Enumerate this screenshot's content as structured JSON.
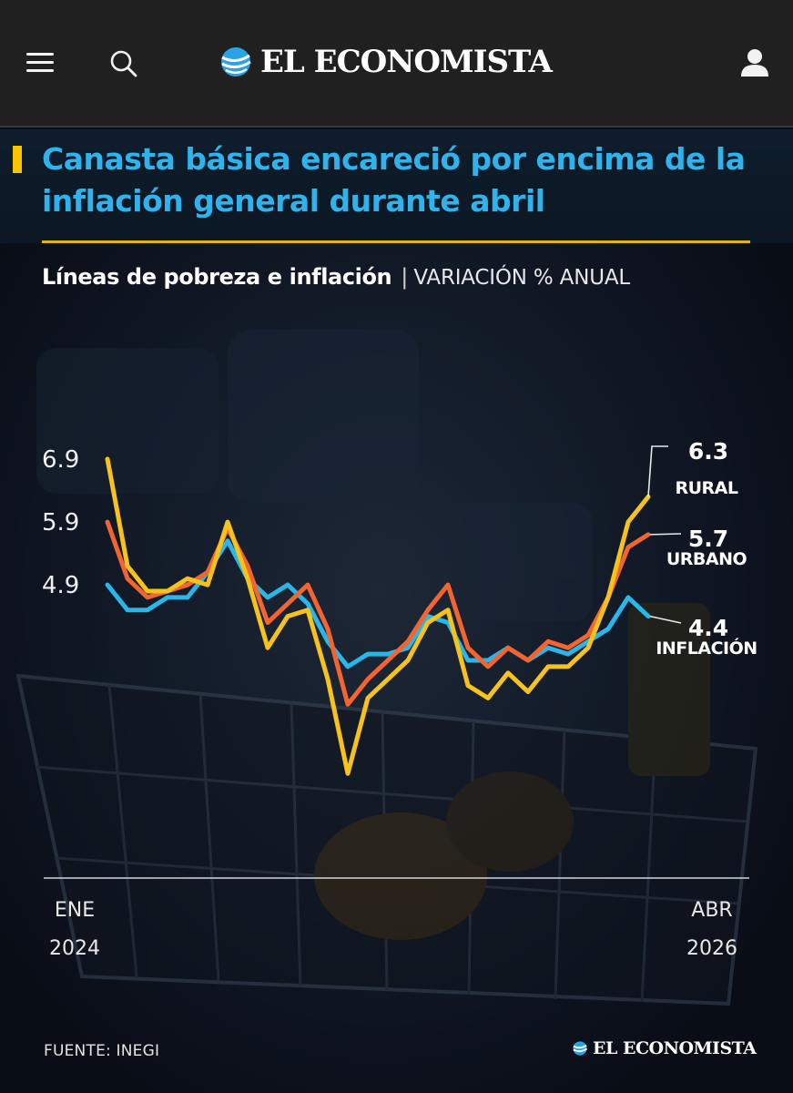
{
  "header": {
    "brand": "EL ECONOMISTA",
    "icons": [
      "menu-icon",
      "search-icon",
      "user-icon"
    ]
  },
  "article": {
    "title": "Canasta básica encareció por encima de la inflación general durante abril",
    "footer_source": "FUENTE: INEGI",
    "footer_brand": "EL ECONOMISTA"
  },
  "colors": {
    "rural": "#f7c21a",
    "urbano": "#f26430",
    "inflacion": "#29b6e8",
    "title": "#2fb3ec",
    "accent": "#f7c400"
  },
  "chart_data": {
    "type": "line",
    "title": "Líneas de pobreza e inflación",
    "subtitle": "VARIACIÓN % ANUAL",
    "x_start_label": [
      "ENE",
      "2024"
    ],
    "x_end_label": [
      "ABR",
      "2026"
    ],
    "x": [
      "2024-01",
      "2024-02",
      "2024-03",
      "2024-04",
      "2024-05",
      "2024-06",
      "2024-07",
      "2024-08",
      "2024-09",
      "2024-10",
      "2024-11",
      "2024-12",
      "2025-01",
      "2025-02",
      "2025-03",
      "2025-04",
      "2025-05",
      "2025-06",
      "2025-07",
      "2025-08",
      "2025-09",
      "2025-10",
      "2025-11",
      "2025-12",
      "2026-01",
      "2026-02",
      "2026-03",
      "2026-04"
    ],
    "y_ticks": [
      6.9,
      5.9,
      4.9
    ],
    "ylim": [
      1.6,
      6.9
    ],
    "series": [
      {
        "name": "RURAL",
        "key": "rural",
        "end_value": "6.3",
        "values": [
          6.9,
          5.2,
          4.8,
          4.8,
          5.0,
          4.9,
          5.9,
          5.0,
          3.9,
          4.4,
          4.5,
          3.4,
          1.9,
          3.1,
          3.4,
          3.7,
          4.3,
          4.5,
          3.3,
          3.1,
          3.5,
          3.2,
          3.6,
          3.6,
          3.9,
          4.7,
          5.9,
          6.3
        ]
      },
      {
        "name": "URBANO",
        "key": "urbano",
        "end_value": "5.7",
        "values": [
          5.9,
          5.0,
          4.7,
          4.8,
          4.9,
          5.1,
          5.8,
          5.2,
          4.3,
          4.6,
          4.9,
          4.2,
          3.0,
          3.4,
          3.7,
          4.0,
          4.5,
          4.9,
          3.9,
          3.6,
          3.9,
          3.7,
          4.0,
          3.9,
          4.1,
          4.7,
          5.5,
          5.7
        ]
      },
      {
        "name": "INFLACIÓN",
        "key": "inflacion",
        "end_value": "4.4",
        "values": [
          4.9,
          4.5,
          4.5,
          4.7,
          4.7,
          5.1,
          5.6,
          5.0,
          4.7,
          4.9,
          4.6,
          4.0,
          3.6,
          3.8,
          3.8,
          3.9,
          4.4,
          4.3,
          3.7,
          3.7,
          3.9,
          3.7,
          3.9,
          3.8,
          4.0,
          4.2,
          4.7,
          4.4
        ]
      }
    ],
    "grid": false,
    "legend": "end-labels-right"
  }
}
